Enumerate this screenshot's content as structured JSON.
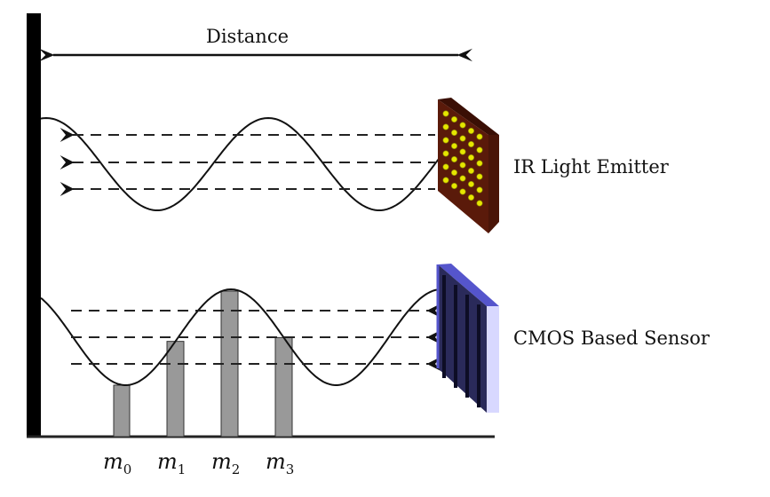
{
  "labels": {
    "distance": "Distance",
    "emitter": "IR Light Emitter",
    "sensor": "CMOS Based Sensor"
  },
  "samples": [
    {
      "symbol": "m",
      "index": "0"
    },
    {
      "symbol": "m",
      "index": "1"
    },
    {
      "symbol": "m",
      "index": "2"
    },
    {
      "symbol": "m",
      "index": "3"
    }
  ],
  "colors": {
    "emitter_panel": "#5a1a0a",
    "emitter_led": "#e6e600",
    "sensor_panel": "#2a2a5a",
    "sensor_edge": "#5555cc",
    "sensor_side": "#d8d8ff",
    "sample_bar": "#999999"
  }
}
